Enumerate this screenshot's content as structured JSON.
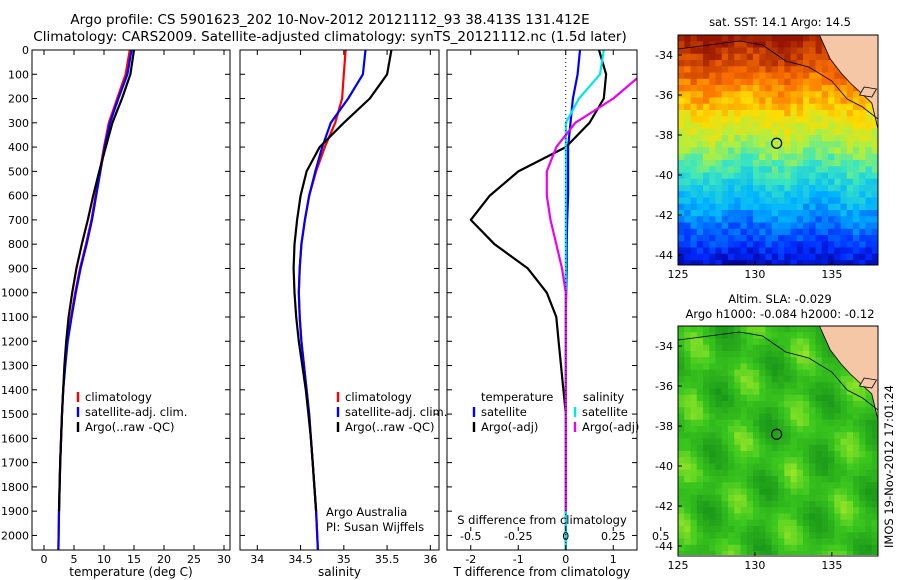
{
  "header": {
    "line1": "Argo profile: CS 5901623_202 10-Nov-2012 20121112_93 38.413S 131.412E",
    "line2": "Climatology: CARS2009. Satellite-adjusted climatology: synTS_20121112.nc (1.5d later)"
  },
  "colors": {
    "climatology": "#ff0000",
    "satellite": "#0000ff",
    "argo": "#000000",
    "satellite_diff": "#00e5ee",
    "argo_diff": "#ee00ee"
  },
  "chart_data": [
    {
      "type": "line",
      "id": "temperature",
      "xlabel": "temperature (deg C)",
      "ylabel": "",
      "xlim": [
        -2,
        31
      ],
      "ylim": [
        2060,
        0
      ],
      "xticks": [
        0,
        5,
        10,
        15,
        20,
        25,
        30
      ],
      "yticks": [
        0,
        100,
        200,
        300,
        400,
        500,
        600,
        700,
        800,
        900,
        1000,
        1100,
        1200,
        1300,
        1400,
        1500,
        1600,
        1700,
        1800,
        1900,
        2000
      ],
      "legend": [
        "climatology",
        "satellite-adj. clim.",
        "Argo(..raw -QC)"
      ],
      "series": [
        {
          "name": "climatology",
          "color": "#ff0000",
          "x": [
            14.3,
            13.6,
            12.2,
            10.8,
            10.0,
            9.3,
            8.6,
            7.9,
            7.0,
            6.0,
            5.2,
            4.5,
            3.9,
            3.5,
            3.2,
            3.0,
            2.85,
            2.7,
            2.6,
            2.5,
            2.4
          ],
          "y": [
            0,
            100,
            200,
            300,
            400,
            500,
            600,
            700,
            800,
            900,
            1000,
            1100,
            1200,
            1300,
            1400,
            1500,
            1600,
            1700,
            1800,
            1900,
            2060
          ]
        },
        {
          "name": "satellite-adj. clim.",
          "color": "#0000ff",
          "x": [
            14.6,
            13.9,
            12.4,
            11.0,
            10.1,
            9.4,
            8.7,
            8.0,
            7.1,
            6.1,
            5.3,
            4.6,
            3.95,
            3.55,
            3.2,
            3.0,
            2.85,
            2.7,
            2.6,
            2.5,
            2.4
          ],
          "y": [
            0,
            100,
            200,
            300,
            400,
            500,
            600,
            700,
            800,
            900,
            1000,
            1100,
            1200,
            1300,
            1400,
            1500,
            1600,
            1700,
            1800,
            1900,
            2060
          ]
        },
        {
          "name": "Argo(..raw -QC)",
          "color": "#000000",
          "x": [
            15.0,
            14.4,
            13.0,
            11.4,
            10.3,
            9.2,
            8.2,
            7.3,
            6.3,
            5.4,
            4.7,
            4.1,
            3.7,
            3.4,
            3.2,
            3.0,
            2.85,
            2.7,
            2.6,
            2.5
          ],
          "y": [
            0,
            100,
            200,
            300,
            400,
            500,
            600,
            700,
            800,
            900,
            1000,
            1100,
            1200,
            1300,
            1400,
            1500,
            1600,
            1700,
            1800,
            1900
          ]
        }
      ]
    },
    {
      "type": "line",
      "id": "salinity",
      "xlabel": "salinity",
      "xlim": [
        33.8,
        36.1
      ],
      "ylim": [
        2060,
        0
      ],
      "xticks": [
        34,
        34.5,
        35,
        35.5,
        36
      ],
      "legend": [
        "climatology",
        "satellite-adj. clim.",
        "Argo(..raw -QC)"
      ],
      "annotations": [
        "Argo Australia",
        "PI: Susan Wijffels"
      ],
      "series": [
        {
          "name": "climatology",
          "color": "#ff0000",
          "x": [
            35.02,
            35.0,
            34.98,
            34.9,
            34.78,
            34.68,
            34.6,
            34.55,
            34.51,
            34.49,
            34.48,
            34.49,
            34.51,
            34.54,
            34.57,
            34.6,
            34.62,
            34.64,
            34.66,
            34.68,
            34.7
          ],
          "y": [
            0,
            100,
            200,
            300,
            400,
            500,
            600,
            700,
            800,
            900,
            1000,
            1100,
            1200,
            1300,
            1400,
            1500,
            1600,
            1700,
            1800,
            1900,
            2060
          ]
        },
        {
          "name": "satellite-adj. clim.",
          "color": "#0000ff",
          "x": [
            35.25,
            35.22,
            35.05,
            34.85,
            34.75,
            34.67,
            34.6,
            34.55,
            34.51,
            34.49,
            34.48,
            34.49,
            34.51,
            34.54,
            34.57,
            34.6,
            34.62,
            34.64,
            34.66,
            34.68,
            34.7
          ],
          "y": [
            0,
            100,
            200,
            300,
            400,
            500,
            600,
            700,
            800,
            900,
            1000,
            1100,
            1200,
            1300,
            1400,
            1500,
            1600,
            1700,
            1800,
            1900,
            2060
          ]
        },
        {
          "name": "Argo(..raw -QC)",
          "color": "#000000",
          "x": [
            35.55,
            35.5,
            35.3,
            35.0,
            34.72,
            34.57,
            34.5,
            34.46,
            34.43,
            34.42,
            34.43,
            34.45,
            34.48,
            34.52,
            34.56,
            34.59,
            34.62,
            34.64,
            34.66,
            34.68
          ],
          "y": [
            0,
            100,
            200,
            300,
            400,
            500,
            600,
            700,
            800,
            900,
            1000,
            1100,
            1200,
            1300,
            1400,
            1500,
            1600,
            1700,
            1800,
            1900
          ]
        }
      ]
    },
    {
      "type": "line",
      "id": "difference",
      "xlabel": "T difference from climatology",
      "xlabel_top": "S difference from climatology",
      "xlim": [
        -2.5,
        1.5
      ],
      "ylim": [
        2060,
        0
      ],
      "xticks": [
        -2,
        -1,
        0,
        1
      ],
      "xtick_labels": [
        "-2",
        "-1",
        "0",
        "1"
      ],
      "s_ticks": [
        -0.5,
        -0.25,
        0,
        0.25,
        0.5
      ],
      "s_tick_labels": [
        "-0.5",
        "-0.25",
        "0",
        "0.25",
        "0.5"
      ],
      "legend_t_title": "temperature",
      "legend_s_title": "salinity",
      "legend_t": [
        "satellite",
        "Argo(-adj)"
      ],
      "legend_s": [
        "satellite",
        "Argo(-adj)"
      ],
      "series": [
        {
          "name": "satellite",
          "kind": "T",
          "color": "#0000ff",
          "x": [
            0.3,
            0.25,
            0.15,
            0.1,
            0.05,
            0.05,
            0.05,
            0.03,
            0.02,
            0.02,
            0.01,
            0.0,
            0.0,
            0.0,
            0.0,
            0.0,
            0.0,
            0.0,
            0.0,
            0.0,
            0.0
          ],
          "y": [
            0,
            100,
            200,
            300,
            400,
            500,
            600,
            700,
            800,
            900,
            1000,
            1100,
            1200,
            1300,
            1400,
            1500,
            1600,
            1700,
            1800,
            1900,
            2060
          ]
        },
        {
          "name": "Argo(-adj)",
          "kind": "T",
          "color": "#000000",
          "x": [
            0.7,
            0.85,
            0.8,
            0.5,
            0.0,
            -1.0,
            -1.6,
            -2.0,
            -1.5,
            -0.8,
            -0.4,
            -0.2,
            -0.15,
            -0.1,
            -0.05,
            0.0,
            0.0,
            0.0,
            0.0,
            0.0
          ],
          "y": [
            0,
            100,
            200,
            300,
            400,
            500,
            600,
            700,
            800,
            900,
            1000,
            1100,
            1200,
            1300,
            1400,
            1500,
            1600,
            1700,
            1800,
            1900
          ]
        },
        {
          "name": "satellite",
          "kind": "S",
          "color": "#00e5ee",
          "x": [
            0.2,
            0.18,
            0.07,
            0.0,
            0.0,
            0.0,
            0.0,
            0.0,
            0.0,
            0.0,
            0.0,
            0.0,
            0.0,
            0.0,
            0.0,
            0.0,
            0.0,
            0.0,
            0.0,
            0.0,
            0.0
          ],
          "y": [
            0,
            100,
            200,
            300,
            400,
            500,
            600,
            700,
            800,
            900,
            1000,
            1100,
            1200,
            1300,
            1400,
            1500,
            1600,
            1700,
            1800,
            1900,
            2060
          ]
        },
        {
          "name": "Argo(-adj)",
          "kind": "S",
          "color": "#ee00ee",
          "x": [
            0.45,
            0.4,
            0.25,
            0.05,
            -0.05,
            -0.1,
            -0.1,
            -0.08,
            -0.05,
            -0.02,
            0.0,
            0.0,
            0.0,
            0.0,
            0.0,
            0.0,
            0.0,
            0.0,
            0.0,
            0.0
          ],
          "y": [
            0,
            100,
            200,
            300,
            400,
            500,
            600,
            700,
            800,
            900,
            1000,
            1100,
            1200,
            1300,
            1400,
            1500,
            1600,
            1700,
            1800,
            1900
          ]
        }
      ]
    },
    {
      "type": "heatmap",
      "id": "sst_map",
      "title": "sat. SST: 14.1  Argo: 14.5",
      "xlim": [
        125,
        138
      ],
      "ylim": [
        -44.5,
        -33
      ],
      "xticks": [
        125,
        130,
        135
      ],
      "yticks": [
        -34,
        -36,
        -38,
        -40,
        -42,
        -44
      ],
      "float_position": {
        "lon": 131.412,
        "lat": -38.413
      }
    },
    {
      "type": "heatmap",
      "id": "sla_map",
      "title": "Altim. SLA: -0.029",
      "subtitle": "Argo h1000: -0.084 h2000: -0.12",
      "xlim": [
        125,
        138
      ],
      "ylim": [
        -44.5,
        -33
      ],
      "xticks": [
        125,
        130,
        135
      ],
      "yticks": [
        -34,
        -36,
        -38,
        -40,
        -42,
        -44
      ],
      "float_position": {
        "lon": 131.412,
        "lat": -38.413
      }
    }
  ],
  "side_stamp": "IMOS 19-Nov-2012 17:01:24"
}
